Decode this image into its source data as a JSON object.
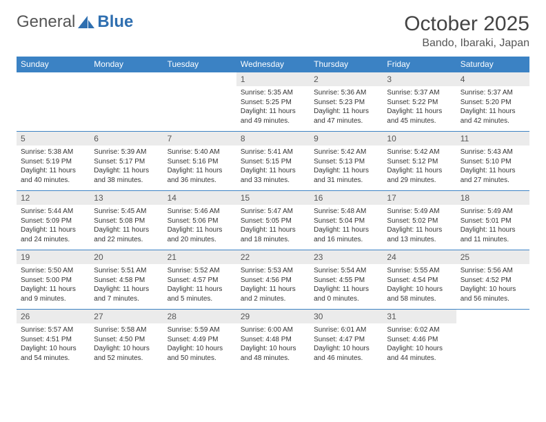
{
  "logo": {
    "text1": "General",
    "text2": "Blue"
  },
  "title": "October 2025",
  "location": "Bando, Ibaraki, Japan",
  "colors": {
    "header_bg": "#3b82c4",
    "header_text": "#ffffff",
    "daynum_bg": "#ebebeb",
    "row_border": "#3b82c4",
    "body_text": "#333333",
    "title_text": "#444444"
  },
  "weekdays": [
    "Sunday",
    "Monday",
    "Tuesday",
    "Wednesday",
    "Thursday",
    "Friday",
    "Saturday"
  ],
  "weeks": [
    [
      {
        "d": "",
        "t": ""
      },
      {
        "d": "",
        "t": ""
      },
      {
        "d": "",
        "t": ""
      },
      {
        "d": "1",
        "t": "Sunrise: 5:35 AM\nSunset: 5:25 PM\nDaylight: 11 hours and 49 minutes."
      },
      {
        "d": "2",
        "t": "Sunrise: 5:36 AM\nSunset: 5:23 PM\nDaylight: 11 hours and 47 minutes."
      },
      {
        "d": "3",
        "t": "Sunrise: 5:37 AM\nSunset: 5:22 PM\nDaylight: 11 hours and 45 minutes."
      },
      {
        "d": "4",
        "t": "Sunrise: 5:37 AM\nSunset: 5:20 PM\nDaylight: 11 hours and 42 minutes."
      }
    ],
    [
      {
        "d": "5",
        "t": "Sunrise: 5:38 AM\nSunset: 5:19 PM\nDaylight: 11 hours and 40 minutes."
      },
      {
        "d": "6",
        "t": "Sunrise: 5:39 AM\nSunset: 5:17 PM\nDaylight: 11 hours and 38 minutes."
      },
      {
        "d": "7",
        "t": "Sunrise: 5:40 AM\nSunset: 5:16 PM\nDaylight: 11 hours and 36 minutes."
      },
      {
        "d": "8",
        "t": "Sunrise: 5:41 AM\nSunset: 5:15 PM\nDaylight: 11 hours and 33 minutes."
      },
      {
        "d": "9",
        "t": "Sunrise: 5:42 AM\nSunset: 5:13 PM\nDaylight: 11 hours and 31 minutes."
      },
      {
        "d": "10",
        "t": "Sunrise: 5:42 AM\nSunset: 5:12 PM\nDaylight: 11 hours and 29 minutes."
      },
      {
        "d": "11",
        "t": "Sunrise: 5:43 AM\nSunset: 5:10 PM\nDaylight: 11 hours and 27 minutes."
      }
    ],
    [
      {
        "d": "12",
        "t": "Sunrise: 5:44 AM\nSunset: 5:09 PM\nDaylight: 11 hours and 24 minutes."
      },
      {
        "d": "13",
        "t": "Sunrise: 5:45 AM\nSunset: 5:08 PM\nDaylight: 11 hours and 22 minutes."
      },
      {
        "d": "14",
        "t": "Sunrise: 5:46 AM\nSunset: 5:06 PM\nDaylight: 11 hours and 20 minutes."
      },
      {
        "d": "15",
        "t": "Sunrise: 5:47 AM\nSunset: 5:05 PM\nDaylight: 11 hours and 18 minutes."
      },
      {
        "d": "16",
        "t": "Sunrise: 5:48 AM\nSunset: 5:04 PM\nDaylight: 11 hours and 16 minutes."
      },
      {
        "d": "17",
        "t": "Sunrise: 5:49 AM\nSunset: 5:02 PM\nDaylight: 11 hours and 13 minutes."
      },
      {
        "d": "18",
        "t": "Sunrise: 5:49 AM\nSunset: 5:01 PM\nDaylight: 11 hours and 11 minutes."
      }
    ],
    [
      {
        "d": "19",
        "t": "Sunrise: 5:50 AM\nSunset: 5:00 PM\nDaylight: 11 hours and 9 minutes."
      },
      {
        "d": "20",
        "t": "Sunrise: 5:51 AM\nSunset: 4:58 PM\nDaylight: 11 hours and 7 minutes."
      },
      {
        "d": "21",
        "t": "Sunrise: 5:52 AM\nSunset: 4:57 PM\nDaylight: 11 hours and 5 minutes."
      },
      {
        "d": "22",
        "t": "Sunrise: 5:53 AM\nSunset: 4:56 PM\nDaylight: 11 hours and 2 minutes."
      },
      {
        "d": "23",
        "t": "Sunrise: 5:54 AM\nSunset: 4:55 PM\nDaylight: 11 hours and 0 minutes."
      },
      {
        "d": "24",
        "t": "Sunrise: 5:55 AM\nSunset: 4:54 PM\nDaylight: 10 hours and 58 minutes."
      },
      {
        "d": "25",
        "t": "Sunrise: 5:56 AM\nSunset: 4:52 PM\nDaylight: 10 hours and 56 minutes."
      }
    ],
    [
      {
        "d": "26",
        "t": "Sunrise: 5:57 AM\nSunset: 4:51 PM\nDaylight: 10 hours and 54 minutes."
      },
      {
        "d": "27",
        "t": "Sunrise: 5:58 AM\nSunset: 4:50 PM\nDaylight: 10 hours and 52 minutes."
      },
      {
        "d": "28",
        "t": "Sunrise: 5:59 AM\nSunset: 4:49 PM\nDaylight: 10 hours and 50 minutes."
      },
      {
        "d": "29",
        "t": "Sunrise: 6:00 AM\nSunset: 4:48 PM\nDaylight: 10 hours and 48 minutes."
      },
      {
        "d": "30",
        "t": "Sunrise: 6:01 AM\nSunset: 4:47 PM\nDaylight: 10 hours and 46 minutes."
      },
      {
        "d": "31",
        "t": "Sunrise: 6:02 AM\nSunset: 4:46 PM\nDaylight: 10 hours and 44 minutes."
      },
      {
        "d": "",
        "t": ""
      }
    ]
  ]
}
